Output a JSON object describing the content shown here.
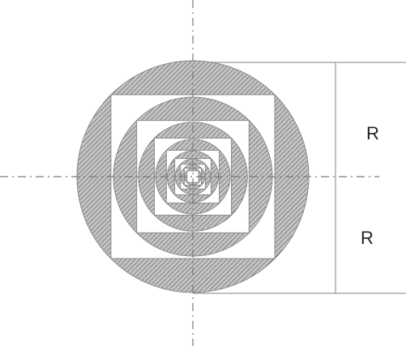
{
  "diagram": {
    "labels": {
      "upper_radius": "R",
      "lower_radius": "R"
    },
    "nested_levels": 8,
    "colors": {
      "hatch_fill": "#b0b0b0",
      "hatch_line": "#555555",
      "outline": "#888888",
      "centerline": "#777777",
      "background": "#ffffff"
    }
  }
}
